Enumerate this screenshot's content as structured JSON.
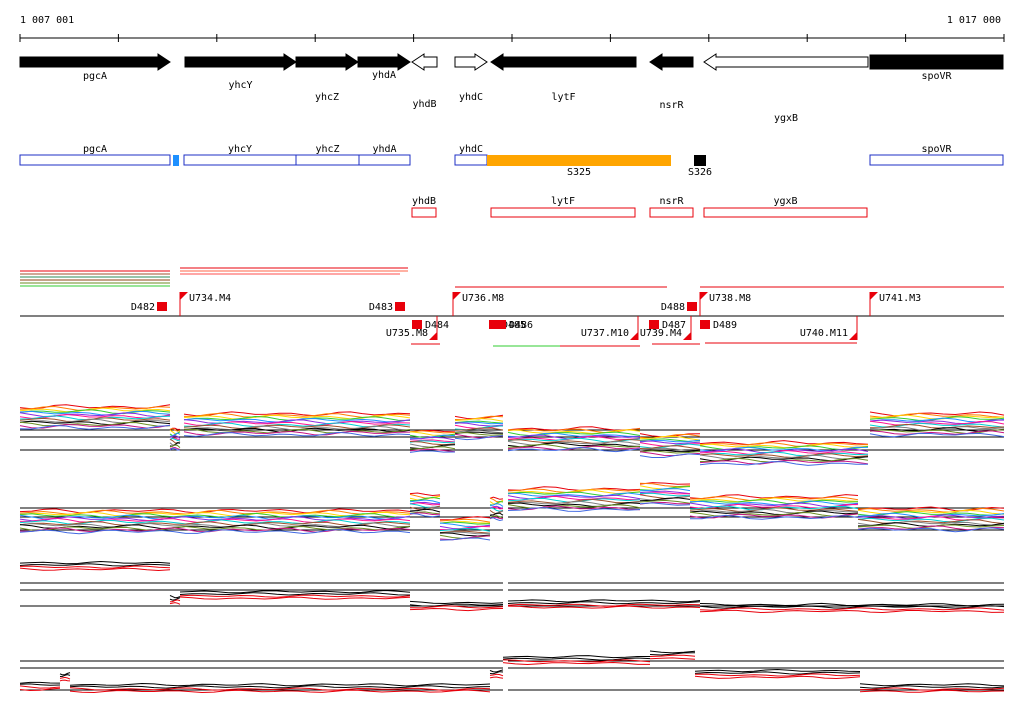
{
  "coords": {
    "start": "1 007 001",
    "end": "1 017 000"
  },
  "genes": [
    {
      "name": "pgcA",
      "x1": 20,
      "x2": 170,
      "dir": "fwd",
      "fill": "#000000",
      "labelY": 79
    },
    {
      "name": "yhcY",
      "x1": 185,
      "x2": 296,
      "dir": "fwd",
      "fill": "#000000",
      "labelY": 88
    },
    {
      "name": "yhcZ",
      "x1": 296,
      "x2": 358,
      "dir": "fwd",
      "fill": "#000000",
      "labelY": 100
    },
    {
      "name": "yhdA",
      "x1": 358,
      "x2": 410,
      "dir": "fwd",
      "fill": "#000000",
      "labelY": 78
    },
    {
      "name": "yhdB",
      "x1": 412,
      "x2": 437,
      "dir": "rev",
      "fill": "#ffffff",
      "labelY": 107
    },
    {
      "name": "yhdC",
      "x1": 455,
      "x2": 487,
      "dir": "fwd",
      "fill": "#ffffff",
      "labelY": 100
    },
    {
      "name": "lytF",
      "x1": 491,
      "x2": 636,
      "dir": "rev",
      "fill": "#000000",
      "labelY": 100
    },
    {
      "name": "nsrR",
      "x1": 650,
      "x2": 693,
      "dir": "rev",
      "fill": "#000000",
      "labelY": 108
    },
    {
      "name": "ygxB",
      "x1": 704,
      "x2": 868,
      "dir": "rev",
      "fill": "#ffffff",
      "labelY": 121
    },
    {
      "name": "spoVR",
      "x1": 870,
      "x2": 1003,
      "dir": "fwd",
      "fill": "#000000",
      "labelY": 79
    }
  ],
  "operonBoxes": [
    {
      "name": "pgcA",
      "x1": 20,
      "x2": 170
    },
    {
      "name": "yhcY",
      "x1": 184,
      "x2": 296
    },
    {
      "name": "yhcZ",
      "x1": 296,
      "x2": 359
    },
    {
      "name": "yhdA",
      "x1": 359,
      "x2": 410
    },
    {
      "name": "yhdC",
      "x1": 455,
      "x2": 487
    },
    {
      "name": "spoVR",
      "x1": 870,
      "x2": 1003
    }
  ],
  "sRNA": [
    {
      "name": "",
      "x1": 173,
      "x2": 179,
      "color": "#1e90ff"
    },
    {
      "name": "S325",
      "x1": 487,
      "x2": 671,
      "color": "#ffa500"
    },
    {
      "name": "S326",
      "x1": 694,
      "x2": 706,
      "color": "#000000"
    }
  ],
  "redBoxes": [
    {
      "name": "yhdB",
      "x1": 412,
      "x2": 436
    },
    {
      "name": "lytF",
      "x1": 491,
      "x2": 635
    },
    {
      "name": "nsrR",
      "x1": 650,
      "x2": 693
    },
    {
      "name": "ygxB",
      "x1": 704,
      "x2": 867
    }
  ],
  "features": [
    {
      "name": "D482",
      "type": "D",
      "x": 162,
      "strand": "up"
    },
    {
      "name": "U734.M4",
      "type": "U",
      "x": 180,
      "strand": "up"
    },
    {
      "name": "D483",
      "type": "D",
      "x": 400,
      "strand": "up"
    },
    {
      "name": "U735.M8",
      "type": "U",
      "x": 437,
      "strand": "down"
    },
    {
      "name": "D484",
      "type": "D",
      "x": 417,
      "strand": "down"
    },
    {
      "name": "U736.M8",
      "type": "U",
      "x": 453,
      "strand": "up"
    },
    {
      "name": "D485",
      "type": "D",
      "x": 494,
      "strand": "down"
    },
    {
      "name": "D486",
      "type": "D",
      "x": 501,
      "strand": "down"
    },
    {
      "name": "U737.M10",
      "type": "U",
      "x": 638,
      "strand": "down"
    },
    {
      "name": "D487",
      "type": "D",
      "x": 654,
      "strand": "down"
    },
    {
      "name": "U739.M4",
      "type": "U",
      "x": 691,
      "strand": "down"
    },
    {
      "name": "D488",
      "type": "D",
      "x": 692,
      "strand": "up"
    },
    {
      "name": "U738.M8",
      "type": "U",
      "x": 700,
      "strand": "up"
    },
    {
      "name": "D489",
      "type": "D",
      "x": 705,
      "strand": "down"
    },
    {
      "name": "U740.M11",
      "type": "U",
      "x": 857,
      "strand": "down"
    },
    {
      "name": "U741.M3",
      "type": "U",
      "x": 870,
      "strand": "up"
    }
  ],
  "colors": {
    "operon": "#1c2fc4",
    "red": "#e8000b",
    "axis": "#000000"
  }
}
